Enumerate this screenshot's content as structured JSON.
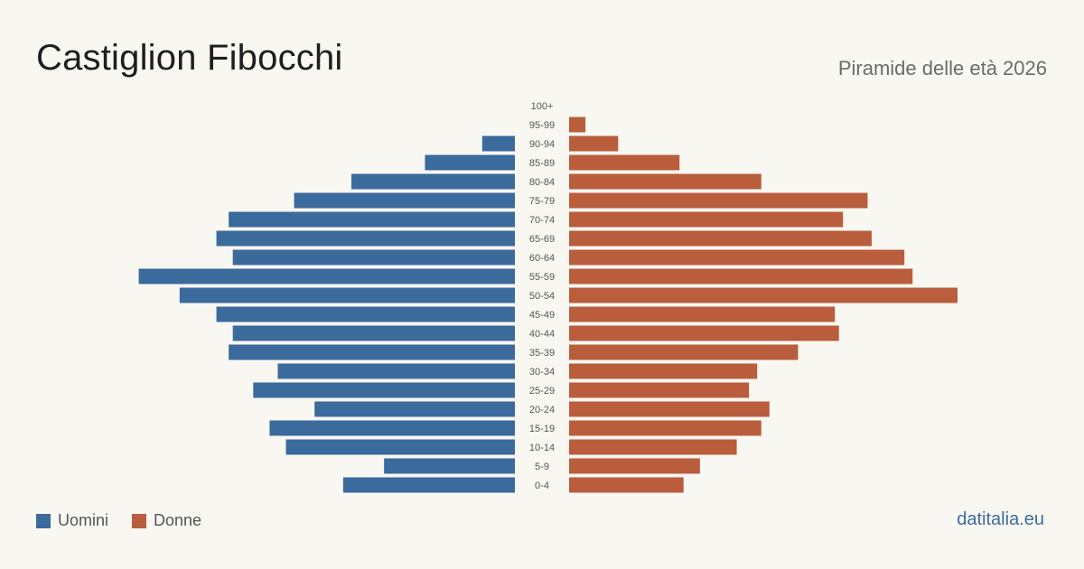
{
  "header": {
    "title": "Castiglion Fibocchi",
    "subtitle": "Piramide delle età 2026"
  },
  "legend": {
    "men_label": "Uomini",
    "women_label": "Donne"
  },
  "source": "datitalia.eu",
  "colors": {
    "men": "#3b6a9c",
    "women": "#b95d3c",
    "background": "#f9f7f2"
  },
  "chart_data": {
    "type": "bar",
    "orientation": "horizontal-pyramid",
    "title": "Piramide delle età 2026",
    "categories": [
      "100+",
      "95-99",
      "90-94",
      "85-89",
      "80-84",
      "75-79",
      "70-74",
      "65-69",
      "60-64",
      "55-59",
      "50-54",
      "45-49",
      "40-44",
      "35-39",
      "30-34",
      "25-29",
      "20-24",
      "15-19",
      "10-14",
      "5-9",
      "0-4"
    ],
    "series": [
      {
        "name": "Uomini",
        "side": "left",
        "values": [
          0,
          0,
          8,
          22,
          40,
          54,
          70,
          73,
          69,
          92,
          82,
          73,
          69,
          70,
          58,
          64,
          49,
          60,
          56,
          32,
          42
        ]
      },
      {
        "name": "Donne",
        "side": "right",
        "values": [
          0,
          4,
          12,
          27,
          47,
          73,
          67,
          74,
          82,
          84,
          95,
          65,
          66,
          56,
          46,
          44,
          49,
          47,
          41,
          32,
          28
        ]
      }
    ],
    "legend_position": "bottom-left",
    "grid": false
  }
}
